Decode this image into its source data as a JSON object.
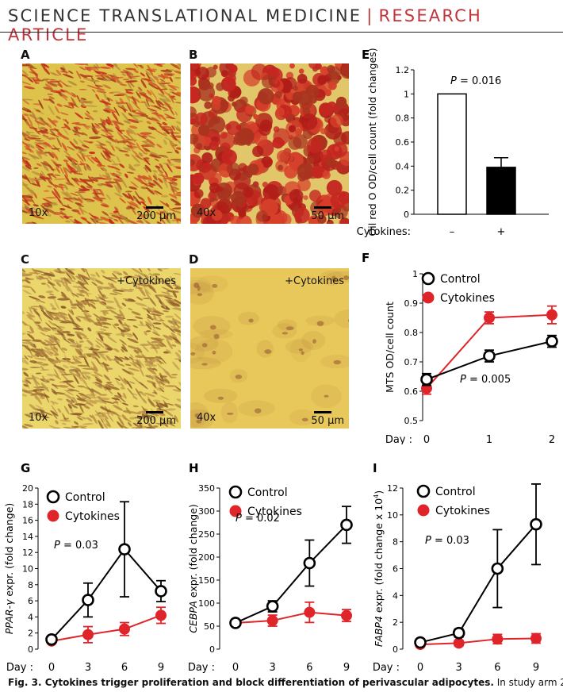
{
  "header": {
    "journal": "SCIENCE TRANSLATIONAL MEDICINE",
    "separator": "|",
    "article_type": "RESEARCH ARTICLE"
  },
  "panels": {
    "A": {
      "label": "A",
      "mag": "10x",
      "scale": "200 µm",
      "overlay": ""
    },
    "B": {
      "label": "B",
      "mag": "40x",
      "scale": "50 µm",
      "overlay": ""
    },
    "C": {
      "label": "C",
      "mag": "10x",
      "scale": "200 µm",
      "overlay": "+Cytokines"
    },
    "D": {
      "label": "D",
      "mag": "40x",
      "scale": "50 µm",
      "overlay": "+Cytokines"
    }
  },
  "colors": {
    "control": "#000000",
    "cytokines": "#e0252a",
    "micro_bg": "#e9d24a",
    "stain": "#c2261e"
  },
  "chart_data": [
    {
      "id": "E",
      "label": "E",
      "type": "bar",
      "ylabel": "Oil red O OD/cell count (fold changes)",
      "ylim": [
        0,
        1.2
      ],
      "yticks": [
        0,
        0.2,
        0.4,
        0.6,
        0.8,
        1,
        1.2
      ],
      "row_label": "Cytokines:",
      "categories": [
        "–",
        "+"
      ],
      "values": [
        1.0,
        0.39
      ],
      "errors": [
        0,
        0.08
      ],
      "annotation_p": "P",
      "annotation_rest": " = 0.016"
    },
    {
      "id": "F",
      "label": "F",
      "type": "line",
      "ylabel": "MTS OD/cell count",
      "ylim": [
        0.5,
        1
      ],
      "yticks": [
        0.5,
        0.6,
        0.7,
        0.8,
        0.9,
        1
      ],
      "row_label": "Day :",
      "x": [
        0,
        1,
        2
      ],
      "series": [
        {
          "name": "Control",
          "values": [
            0.64,
            0.72,
            0.77
          ],
          "errors": [
            0.02,
            0.02,
            0.02
          ]
        },
        {
          "name": "Cytokines",
          "values": [
            0.61,
            0.85,
            0.86
          ],
          "errors": [
            0.02,
            0.02,
            0.03
          ]
        }
      ],
      "annotation_p": "P",
      "annotation_rest": " = 0.005"
    },
    {
      "id": "G",
      "label": "G",
      "type": "line",
      "ylabel_italic": "PPAR-γ",
      "ylabel_rest": " expr. (fold change)",
      "ylim": [
        0,
        20
      ],
      "yticks": [
        0,
        2,
        4,
        6,
        8,
        10,
        12,
        14,
        16,
        18,
        20
      ],
      "row_label": "Day :",
      "x": [
        0,
        3,
        6,
        9
      ],
      "series": [
        {
          "name": "Control",
          "values": [
            1.2,
            6.1,
            12.4,
            7.2
          ],
          "errors": [
            0,
            2.1,
            5.9,
            1.3
          ]
        },
        {
          "name": "Cytokines",
          "values": [
            1.0,
            1.8,
            2.5,
            4.2
          ],
          "errors": [
            0,
            1.0,
            0.8,
            1.0
          ]
        }
      ],
      "annotation_p": "P",
      "annotation_rest": " = 0.03"
    },
    {
      "id": "H",
      "label": "H",
      "type": "line",
      "ylabel_italic": "CEBPA",
      "ylabel_rest": " expr. (fold change)",
      "ylim": [
        0,
        350
      ],
      "yticks": [
        0,
        50,
        100,
        150,
        200,
        250,
        300,
        350
      ],
      "row_label": "Day :",
      "x": [
        0,
        3,
        6,
        9
      ],
      "series": [
        {
          "name": "Control",
          "values": [
            57,
            93,
            187,
            270
          ],
          "errors": [
            0,
            12,
            50,
            40
          ]
        },
        {
          "name": "Cytokines",
          "values": [
            57,
            62,
            80,
            73
          ],
          "errors": [
            0,
            12,
            22,
            13
          ]
        }
      ],
      "annotation_p": "P",
      "annotation_rest": " = 0.02"
    },
    {
      "id": "I",
      "label": "I",
      "type": "line",
      "ylabel_italic": "FABP4",
      "ylabel_rest": " expr. (fold change x 10",
      "ylabel_sup": "4",
      "ylabel_end": ")",
      "ylim": [
        0,
        12
      ],
      "yticks": [
        0,
        2,
        4,
        6,
        8,
        10,
        12
      ],
      "row_label": "Day :",
      "x": [
        0,
        3,
        6,
        9
      ],
      "series": [
        {
          "name": "Control",
          "values": [
            0.5,
            1.2,
            6.0,
            9.3
          ],
          "errors": [
            0,
            0.3,
            2.9,
            3.0
          ]
        },
        {
          "name": "Cytokines",
          "values": [
            0.35,
            0.45,
            0.75,
            0.8
          ],
          "errors": [
            0,
            0.2,
            0.35,
            0.35
          ]
        }
      ],
      "annotation_p": "P",
      "annotation_rest": " = 0.03"
    }
  ],
  "caption": {
    "fig": "Fig. 3.",
    "title": " Cytokines trigger proliferation and block differentiation of perivascular adipocytes.",
    "rest": " In study arm 2,"
  }
}
